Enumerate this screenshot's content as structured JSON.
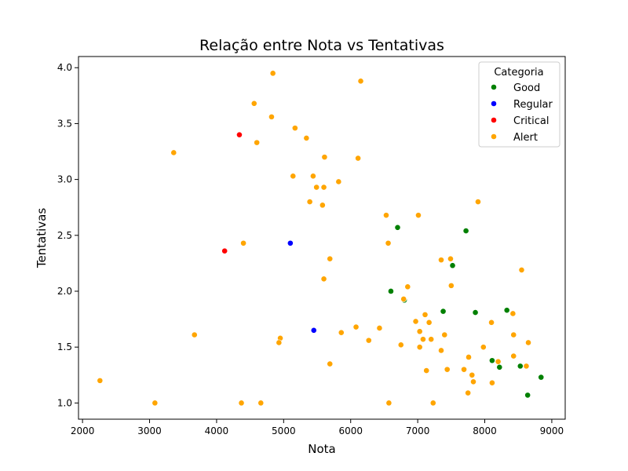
{
  "chart_data": {
    "type": "scatter",
    "title": "Relação entre Nota vs Tentativas",
    "xlabel": "Nota",
    "ylabel": "Tentativas",
    "xlim": [
      1940,
      9200
    ],
    "ylim": [
      0.855,
      4.1
    ],
    "xticks": [
      {
        "value": 2000,
        "label": "2000"
      },
      {
        "value": 3000,
        "label": "3000"
      },
      {
        "value": 4000,
        "label": "4000"
      },
      {
        "value": 5000,
        "label": "5000"
      },
      {
        "value": 6000,
        "label": "6000"
      },
      {
        "value": 7000,
        "label": "7000"
      },
      {
        "value": 8000,
        "label": "8000"
      },
      {
        "value": 9000,
        "label": "9000"
      }
    ],
    "yticks": [
      {
        "value": 1.0,
        "label": "1.0"
      },
      {
        "value": 1.5,
        "label": "1.5"
      },
      {
        "value": 2.0,
        "label": "2.0"
      },
      {
        "value": 2.5,
        "label": "2.5"
      },
      {
        "value": 3.0,
        "label": "3.0"
      },
      {
        "value": 3.5,
        "label": "3.5"
      },
      {
        "value": 4.0,
        "label": "4.0"
      }
    ],
    "grid": false,
    "legend": {
      "title": "Categoria",
      "placement": "top-right"
    },
    "series": [
      {
        "name": "Good",
        "color": "#008000",
        "points": [
          [
            6700,
            2.57
          ],
          [
            7720,
            2.54
          ],
          [
            7520,
            2.23
          ],
          [
            6600,
            2.0
          ],
          [
            6800,
            1.92
          ],
          [
            7380,
            1.82
          ],
          [
            7860,
            1.81
          ],
          [
            8330,
            1.83
          ],
          [
            8110,
            1.38
          ],
          [
            8220,
            1.32
          ],
          [
            8530,
            1.33
          ],
          [
            8840,
            1.23
          ],
          [
            8640,
            1.07
          ]
        ]
      },
      {
        "name": "Regular",
        "color": "#0000ff",
        "points": [
          [
            5100,
            2.43
          ],
          [
            5450,
            1.65
          ]
        ]
      },
      {
        "name": "Critical",
        "color": "#ff0000",
        "points": [
          [
            4340,
            3.4
          ],
          [
            4120,
            2.36
          ]
        ]
      },
      {
        "name": "Alert",
        "color": "#ffa500",
        "points": [
          [
            2260,
            1.2
          ],
          [
            3080,
            1.0
          ],
          [
            3360,
            3.24
          ],
          [
            3670,
            1.61
          ],
          [
            4400,
            2.43
          ],
          [
            4370,
            1.0
          ],
          [
            4660,
            1.0
          ],
          [
            4560,
            3.68
          ],
          [
            4600,
            3.33
          ],
          [
            4820,
            3.56
          ],
          [
            4840,
            3.95
          ],
          [
            4950,
            1.58
          ],
          [
            4930,
            1.54
          ],
          [
            5140,
            3.03
          ],
          [
            5170,
            3.46
          ],
          [
            5340,
            3.37
          ],
          [
            5390,
            2.8
          ],
          [
            5440,
            3.03
          ],
          [
            5490,
            2.93
          ],
          [
            5580,
            2.77
          ],
          [
            5600,
            2.93
          ],
          [
            5610,
            3.2
          ],
          [
            5600,
            2.11
          ],
          [
            5690,
            2.29
          ],
          [
            5690,
            1.35
          ],
          [
            5820,
            2.98
          ],
          [
            5860,
            1.63
          ],
          [
            6080,
            1.68
          ],
          [
            6110,
            3.19
          ],
          [
            6150,
            3.88
          ],
          [
            6270,
            1.56
          ],
          [
            6430,
            1.67
          ],
          [
            6530,
            2.68
          ],
          [
            6560,
            2.43
          ],
          [
            6570,
            1.0
          ],
          [
            6750,
            1.52
          ],
          [
            6790,
            1.93
          ],
          [
            6850,
            2.04
          ],
          [
            6970,
            1.73
          ],
          [
            7010,
            2.68
          ],
          [
            7030,
            1.64
          ],
          [
            7030,
            1.5
          ],
          [
            7080,
            1.57
          ],
          [
            7110,
            1.79
          ],
          [
            7130,
            1.29
          ],
          [
            7170,
            1.72
          ],
          [
            7200,
            1.57
          ],
          [
            7230,
            1.0
          ],
          [
            7350,
            1.47
          ],
          [
            7350,
            2.28
          ],
          [
            7400,
            1.61
          ],
          [
            7440,
            1.3
          ],
          [
            7490,
            2.29
          ],
          [
            7500,
            2.05
          ],
          [
            7690,
            1.3
          ],
          [
            7760,
            1.41
          ],
          [
            7750,
            1.09
          ],
          [
            7810,
            1.25
          ],
          [
            7830,
            1.19
          ],
          [
            7900,
            2.8
          ],
          [
            7980,
            1.5
          ],
          [
            8100,
            1.72
          ],
          [
            8110,
            1.18
          ],
          [
            8200,
            1.37
          ],
          [
            8420,
            1.8
          ],
          [
            8430,
            1.61
          ],
          [
            8430,
            1.42
          ],
          [
            8550,
            2.19
          ],
          [
            8620,
            1.33
          ],
          [
            8650,
            1.54
          ]
        ]
      }
    ]
  }
}
